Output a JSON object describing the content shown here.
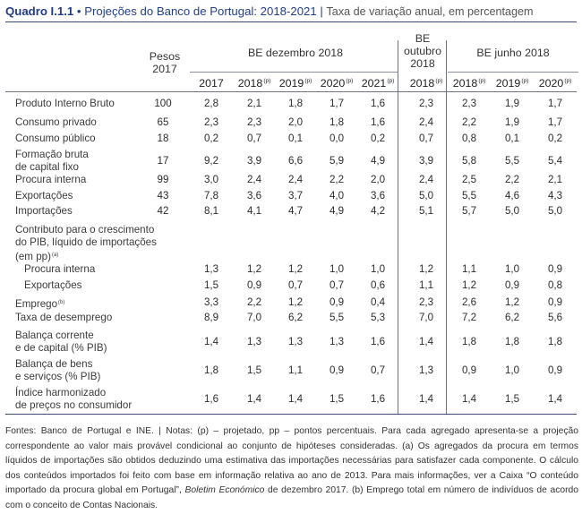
{
  "title": {
    "code": "Quadro I.1.1",
    "bullet": "•",
    "main": "Projeções do Banco de Portugal: 2018-2021",
    "separator": "|",
    "subtitle": "Taxa de variação anual, em percentagem"
  },
  "header": {
    "weights": [
      "Pesos",
      "2017"
    ],
    "groups": {
      "be_dec": "BE dezembro 2018",
      "be_oct": [
        "BE",
        "outubro",
        "2018"
      ],
      "be_jun": "BE junho 2018"
    },
    "years": [
      {
        "y": "2017",
        "s": ""
      },
      {
        "y": "2018",
        "s": "(p)"
      },
      {
        "y": "2019",
        "s": "(p)"
      },
      {
        "y": "2020",
        "s": "(p)"
      },
      {
        "y": "2021",
        "s": "(p)"
      },
      {
        "y": "2018",
        "s": "(p)"
      },
      {
        "y": "2018",
        "s": "(p)"
      },
      {
        "y": "2019",
        "s": "(p)"
      },
      {
        "y": "2020",
        "s": "(p)"
      }
    ]
  },
  "rows": [
    {
      "lines": [
        "Produto Interno Bruto"
      ],
      "w": "100",
      "v": [
        "2,8",
        "2,1",
        "1,8",
        "1,7",
        "1,6",
        "2,3",
        "2,3",
        "1,9",
        "1,7"
      ]
    },
    {
      "lines": [
        "Consumo privado"
      ],
      "w": "65",
      "v": [
        "2,3",
        "2,3",
        "2,0",
        "1,8",
        "1,6",
        "2,4",
        "2,2",
        "1,9",
        "1,7"
      ]
    },
    {
      "lines": [
        "Consumo público"
      ],
      "w": "18",
      "v": [
        "0,2",
        "0,7",
        "0,1",
        "0,0",
        "0,2",
        "0,7",
        "0,8",
        "0,1",
        "0,2"
      ]
    },
    {
      "lines": [
        "Formação bruta",
        "de capital fixo"
      ],
      "w": "17",
      "v": [
        "9,2",
        "3,9",
        "6,6",
        "5,9",
        "4,9",
        "3,9",
        "5,8",
        "5,5",
        "5,4"
      ]
    },
    {
      "lines": [
        "Procura interna"
      ],
      "w": "99",
      "v": [
        "3,0",
        "2,4",
        "2,4",
        "2,2",
        "2,0",
        "2,4",
        "2,5",
        "2,2",
        "2,1"
      ]
    },
    {
      "lines": [
        "Exportações"
      ],
      "w": "43",
      "v": [
        "7,8",
        "3,6",
        "3,7",
        "4,0",
        "3,6",
        "5,0",
        "5,5",
        "4,6",
        "4,3"
      ]
    },
    {
      "lines": [
        "Importações"
      ],
      "w": "42",
      "v": [
        "8,1",
        "4,1",
        "4,7",
        "4,9",
        "4,2",
        "5,1",
        "5,7",
        "5,0",
        "5,0"
      ]
    },
    {
      "lines": [
        "Contributo para o crescimento",
        "do PIB, líquido de importações",
        "(em pp)"
      ],
      "sup": "(a)",
      "w": "",
      "v": [
        "",
        "",
        "",
        "",
        "",
        "",
        "",
        "",
        ""
      ]
    },
    {
      "lines": [
        "Procura interna"
      ],
      "indent": true,
      "w": "",
      "v": [
        "1,3",
        "1,2",
        "1,2",
        "1,0",
        "1,0",
        "1,2",
        "1,1",
        "1,0",
        "0,9"
      ]
    },
    {
      "lines": [
        "Exportações"
      ],
      "indent": true,
      "w": "",
      "v": [
        "1,5",
        "0,9",
        "0,7",
        "0,7",
        "0,6",
        "1,1",
        "1,2",
        "0,9",
        "0,8"
      ]
    },
    {
      "lines": [
        "Emprego"
      ],
      "sup": "(b)",
      "w": "",
      "v": [
        "3,3",
        "2,2",
        "1,2",
        "0,9",
        "0,4",
        "2,3",
        "2,6",
        "1,2",
        "0,9"
      ]
    },
    {
      "lines": [
        "Taxa de desemprego"
      ],
      "w": "",
      "v": [
        "8,9",
        "7,0",
        "6,2",
        "5,5",
        "5,3",
        "7,0",
        "7,2",
        "6,2",
        "5,6"
      ]
    },
    {
      "lines": [
        "Balança corrente",
        "e de capital (% PIB)"
      ],
      "w": "",
      "v": [
        "1,4",
        "1,3",
        "1,3",
        "1,3",
        "1,6",
        "1,4",
        "1,8",
        "1,8",
        "1,8"
      ]
    },
    {
      "lines": [
        "Balança de bens",
        "e serviços (% PIB)"
      ],
      "w": "",
      "v": [
        "1,8",
        "1,5",
        "1,1",
        "0,9",
        "0,7",
        "1,3",
        "0,9",
        "1,0",
        "0,9"
      ]
    },
    {
      "lines": [
        "Índice harmonizado",
        "de preços no consumidor"
      ],
      "w": "",
      "v": [
        "1,6",
        "1,4",
        "1,4",
        "1,5",
        "1,6",
        "1,4",
        "1,4",
        "1,5",
        "1,4"
      ]
    }
  ],
  "notes": {
    "part1": "Fontes: Banco de Portugal e INE.  |  Notas: (p) – projetado, pp – pontos percentuais. Para cada agregado apresenta-se a projeção correspondente ao valor mais provável condicional ao conjunto de hipóteses consideradas. (a) Os agregados da procura em termos líquidos de importações são obtidos deduzindo uma estimativa das importações necessárias para satisfazer cada componente. O cálculo dos conteúdos importados foi feito com base em informação relativa ao ano de 2013. Para mais informações, ver a Caixa “O conteúdo importado da procura global em Portugal”,",
    "italic": "Boletim Económico",
    "part2": " de dezembro 2017. (b) Emprego total em número de indivíduos de acordo com o conceito de Contas Nacionais."
  }
}
